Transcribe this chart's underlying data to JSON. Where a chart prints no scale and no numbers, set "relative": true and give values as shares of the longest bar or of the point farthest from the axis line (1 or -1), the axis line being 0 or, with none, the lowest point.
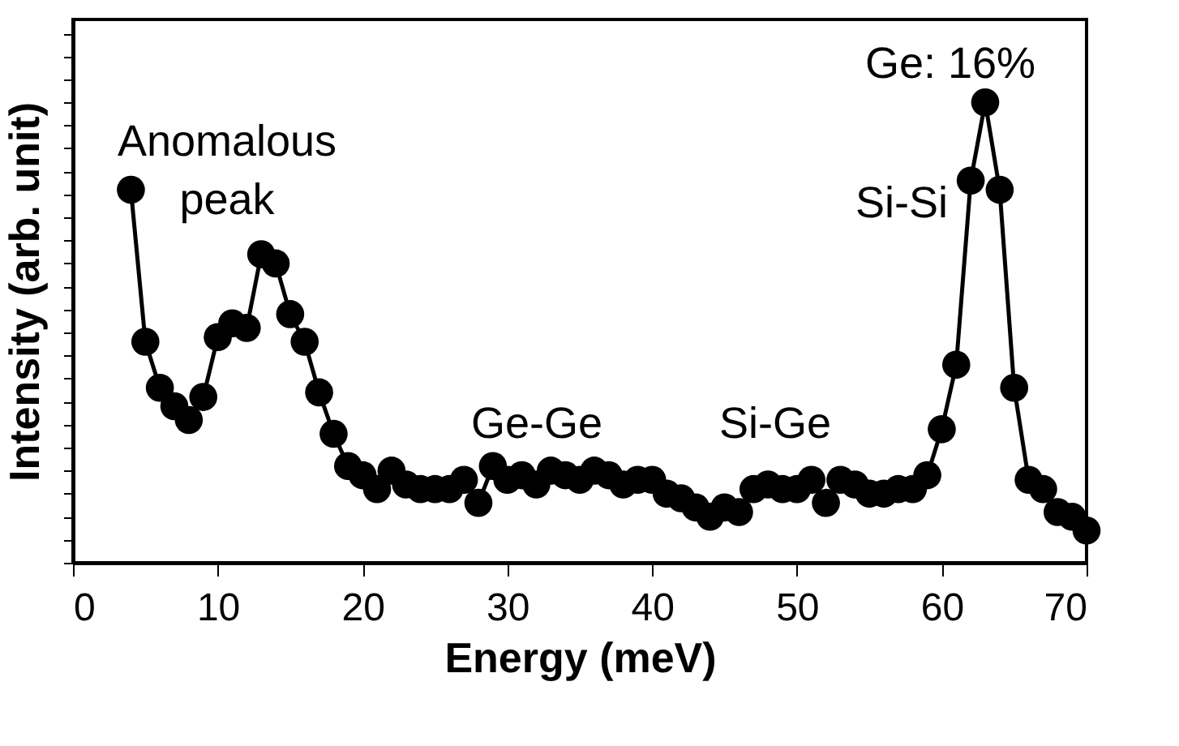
{
  "chart_data": {
    "type": "line",
    "xlabel": "Energy (meV)",
    "ylabel": "Intensity (arb. unit)",
    "relative": true,
    "marker": "circle",
    "line_style": "solid",
    "grid": false,
    "xlim": [
      0,
      70
    ],
    "xticks": [
      0,
      10,
      20,
      30,
      40,
      50,
      60,
      70
    ],
    "x": [
      4,
      5,
      6,
      7,
      8,
      9,
      10,
      11,
      12,
      13,
      14,
      15,
      16,
      17,
      18,
      19,
      20,
      21,
      22,
      23,
      24,
      25,
      26,
      27,
      28,
      29,
      30,
      31,
      32,
      33,
      34,
      35,
      36,
      37,
      38,
      39,
      40,
      41,
      42,
      43,
      44,
      45,
      46,
      47,
      48,
      49,
      50,
      51,
      52,
      53,
      54,
      55,
      56,
      57,
      58,
      59,
      60,
      61,
      62,
      63,
      64,
      65,
      66,
      67,
      68,
      69,
      70
    ],
    "series": [
      {
        "color": "#000000",
        "values": [
          0.81,
          0.48,
          0.38,
          0.34,
          0.31,
          0.36,
          0.49,
          0.52,
          0.51,
          0.67,
          0.65,
          0.54,
          0.48,
          0.37,
          0.28,
          0.21,
          0.19,
          0.16,
          0.2,
          0.17,
          0.16,
          0.16,
          0.16,
          0.18,
          0.13,
          0.21,
          0.18,
          0.19,
          0.17,
          0.2,
          0.19,
          0.18,
          0.2,
          0.19,
          0.17,
          0.18,
          0.18,
          0.15,
          0.14,
          0.12,
          0.1,
          0.12,
          0.11,
          0.16,
          0.17,
          0.16,
          0.16,
          0.18,
          0.13,
          0.18,
          0.17,
          0.15,
          0.15,
          0.16,
          0.16,
          0.19,
          0.29,
          0.43,
          0.83,
          1.0,
          0.81,
          0.38,
          0.18,
          0.16,
          0.11,
          0.1,
          0.07
        ]
      }
    ],
    "annotations": [
      "Anomalous peak",
      "Ge-Ge",
      "Si-Ge",
      "Si-Si",
      "Ge: 16%"
    ]
  }
}
